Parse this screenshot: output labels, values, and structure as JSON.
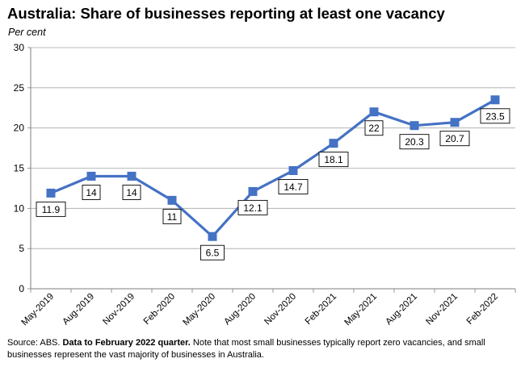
{
  "title": "Australia:  Share of businesses reporting at least one vacancy",
  "y_unit": "Per cent",
  "chart_data": {
    "type": "line",
    "categories": [
      "May-2019",
      "Aug-2019",
      "Nov-2019",
      "Feb-2020",
      "May-2020",
      "Aug-2020",
      "Nov-2020",
      "Feb-2021",
      "May-2021",
      "Aug-2021",
      "Nov-2021",
      "Feb-2022"
    ],
    "values": [
      11.9,
      14,
      14,
      11,
      6.5,
      12.1,
      14.7,
      18.1,
      22,
      20.3,
      20.7,
      23.5
    ],
    "data_labels": [
      "11.9",
      "14",
      "14",
      "11",
      "6.5",
      "12.1",
      "14.7",
      "18.1",
      "22",
      "20.3",
      "20.7",
      "23.5"
    ],
    "label_position": [
      "below",
      "below",
      "below",
      "below",
      "below",
      "below",
      "below",
      "below",
      "below",
      "below",
      "below",
      "below"
    ],
    "ylim": [
      0,
      30
    ],
    "yticks": [
      "0",
      "5",
      "10",
      "15",
      "20",
      "25",
      "30"
    ],
    "grid": true,
    "line_color": "#4472C4"
  },
  "source": {
    "prefix": "Source: ABS.  ",
    "bold": "Data to February 2022 quarter.",
    "rest": "  Note that most small businesses typically report zero vacancies, and small businesses represent the vast majority of businesses in Australia."
  }
}
